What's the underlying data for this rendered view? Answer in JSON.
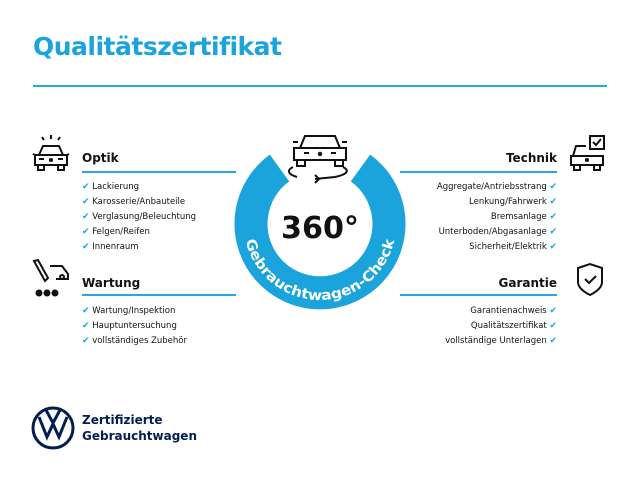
{
  "title": "Qualitätszertifikat",
  "center": {
    "degrees": "360°",
    "label": "Gebrauchtwagen-Check"
  },
  "sections": {
    "optik": {
      "heading": "Optik",
      "items": [
        "Lackierung",
        "Karosserie/Anbauteile",
        "Verglasung/Beleuchtung",
        "Felgen/Reifen",
        "Innenraum"
      ]
    },
    "wartung": {
      "heading": "Wartung",
      "items": [
        "Wartung/Inspektion",
        "Hauptuntersuchung",
        "vollständiges Zubehör"
      ]
    },
    "technik": {
      "heading": "Technik",
      "items": [
        "Aggregate/Antriebsstrang",
        "Lenkung/Fahrwerk",
        "Bremsanlage",
        "Unterboden/Abgasanlage",
        "Sicherheit/Elektrik"
      ]
    },
    "garantie": {
      "heading": "Garantie",
      "items": [
        "Garantienachweis",
        "Qualitätszertifikat",
        "vollständige Unterlagen"
      ]
    }
  },
  "check_symbol": "✔",
  "footer": {
    "line1": "Zertifizierte",
    "line2": "Gebrauchtwagen"
  },
  "colors": {
    "accent": "#1ba3dc",
    "brand": "#001e50"
  }
}
